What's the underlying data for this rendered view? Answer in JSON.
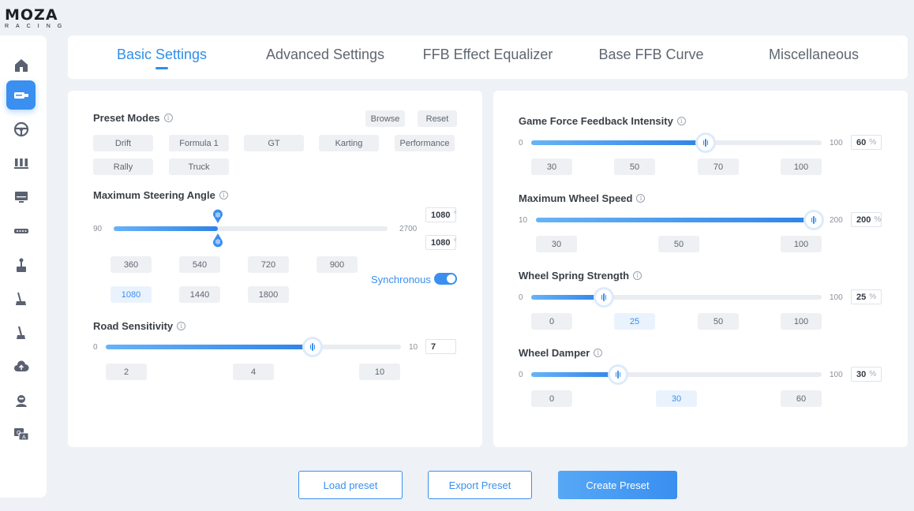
{
  "brand": {
    "name": "MOZA",
    "sub": "RACING"
  },
  "sidebar": {
    "items": [
      {
        "icon": "home-icon",
        "active": false
      },
      {
        "icon": "wheelbase-icon",
        "active": true
      },
      {
        "icon": "steering-wheel-icon",
        "active": false
      },
      {
        "icon": "pedals-icon",
        "active": false
      },
      {
        "icon": "dashboard-icon",
        "active": false
      },
      {
        "icon": "light-bar-icon",
        "active": false
      },
      {
        "icon": "shifter-icon",
        "active": false
      },
      {
        "icon": "handbrake-icon",
        "active": false
      },
      {
        "icon": "handbrake-lever-icon",
        "active": false
      },
      {
        "icon": "cloud-upload-icon",
        "active": false
      },
      {
        "icon": "user-icon",
        "active": false
      },
      {
        "icon": "qa-chat-icon",
        "active": false
      }
    ]
  },
  "tabs": [
    {
      "label": "Basic Settings",
      "active": true
    },
    {
      "label": "Advanced Settings",
      "active": false
    },
    {
      "label": "FFB Effect Equalizer",
      "active": false
    },
    {
      "label": "Base FFB Curve",
      "active": false
    },
    {
      "label": "Miscellaneous",
      "active": false
    }
  ],
  "left": {
    "preset_modes": {
      "title": "Preset Modes",
      "browse_label": "Browse",
      "reset_label": "Reset",
      "presets": [
        "Drift",
        "Formula 1",
        "GT",
        "Karting",
        "Performance",
        "Rally",
        "Truck"
      ]
    },
    "steering": {
      "title": "Maximum Steering Angle",
      "min": "90",
      "max": "2700",
      "value_top": "1080",
      "value_bottom": "1080",
      "unit": "°",
      "level": 0.38,
      "presets": [
        "360",
        "540",
        "720",
        "900",
        "1080",
        "1440",
        "1800"
      ],
      "selected": "1080",
      "sync_label": "Synchronous",
      "sync_on": true
    },
    "road": {
      "title": "Road Sensitivity",
      "min": "0",
      "max": "10",
      "value": "7",
      "level": 0.7,
      "presets": [
        "2",
        "4",
        "10"
      ]
    }
  },
  "right": {
    "ffb": {
      "title": "Game Force Feedback Intensity",
      "min": "0",
      "max": "100",
      "value": "60",
      "unit": "%",
      "level": 0.6,
      "presets": [
        "30",
        "50",
        "70",
        "100"
      ]
    },
    "wheel_speed": {
      "title": "Maximum Wheel Speed",
      "min": "10",
      "max": "200",
      "value": "200",
      "unit": "%",
      "level": 1.0,
      "presets": [
        "30",
        "50",
        "100"
      ]
    },
    "spring": {
      "title": "Wheel Spring Strength",
      "min": "0",
      "max": "100",
      "value": "25",
      "unit": "%",
      "level": 0.25,
      "presets": [
        "0",
        "25",
        "50",
        "100"
      ],
      "selected": "25"
    },
    "damper": {
      "title": "Wheel Damper",
      "min": "0",
      "max": "100",
      "value": "30",
      "unit": "%",
      "level": 0.3,
      "presets": [
        "0",
        "30",
        "60"
      ],
      "selected": "30"
    }
  },
  "footer": {
    "load_label": "Load preset",
    "export_label": "Export Preset",
    "create_label": "Create Preset"
  },
  "colors": {
    "accent": "#3a8ff0",
    "background": "#eef1f6"
  }
}
